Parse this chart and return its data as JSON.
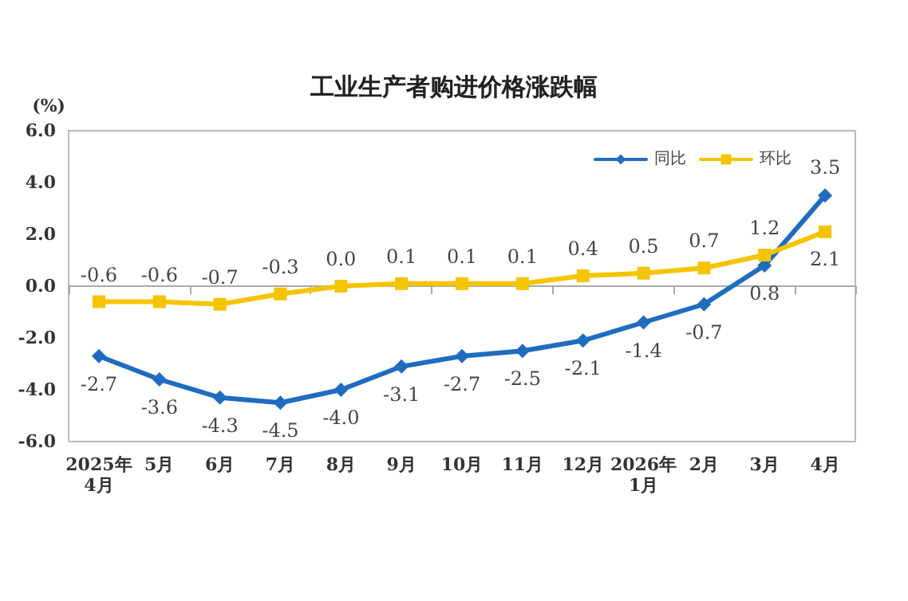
{
  "chart_data": {
    "type": "line",
    "title": "工业生产者购进价格涨跌幅",
    "ylabel": "(%)",
    "categories": [
      "2025年\n4月",
      "5月",
      "6月",
      "7月",
      "8月",
      "9月",
      "10月",
      "11月",
      "12月",
      "2026年\n1月",
      "2月",
      "3月",
      "4月"
    ],
    "series": [
      {
        "name": "同比",
        "color": "#1f6cc0",
        "marker": "diamond",
        "values": [
          -2.7,
          -3.6,
          -4.3,
          -4.5,
          -4.0,
          -3.1,
          -2.7,
          -2.5,
          -2.1,
          -1.4,
          -0.7,
          0.8,
          3.5
        ],
        "value_labels": [
          "-2.7",
          "-3.6",
          "-4.3",
          "-4.5",
          "-4.0",
          "-3.1",
          "-2.7",
          "-2.5",
          "-2.1",
          "-1.4",
          "-0.7",
          "0.8",
          "3.5"
        ]
      },
      {
        "name": "环比",
        "color": "#f5c400",
        "marker": "square",
        "values": [
          -0.6,
          -0.6,
          -0.7,
          -0.3,
          0.0,
          0.1,
          0.1,
          0.1,
          0.4,
          0.5,
          0.7,
          1.2,
          2.1
        ],
        "value_labels": [
          "-0.6",
          "-0.6",
          "-0.7",
          "-0.3",
          "0.0",
          "0.1",
          "0.1",
          "0.1",
          "0.4",
          "0.5",
          "0.7",
          "1.2",
          "2.1"
        ]
      }
    ],
    "ylim": [
      -6,
      6
    ],
    "yticks": [
      {
        "value": -6,
        "label": "-6.0"
      },
      {
        "value": -4,
        "label": "-4.0"
      },
      {
        "value": -2,
        "label": "-2.0"
      },
      {
        "value": 0,
        "label": "0.0"
      },
      {
        "value": 2,
        "label": "2.0"
      },
      {
        "value": 4,
        "label": "4.0"
      },
      {
        "value": 6,
        "label": "6.0"
      }
    ],
    "legend": "top right",
    "line_style": "solid"
  }
}
